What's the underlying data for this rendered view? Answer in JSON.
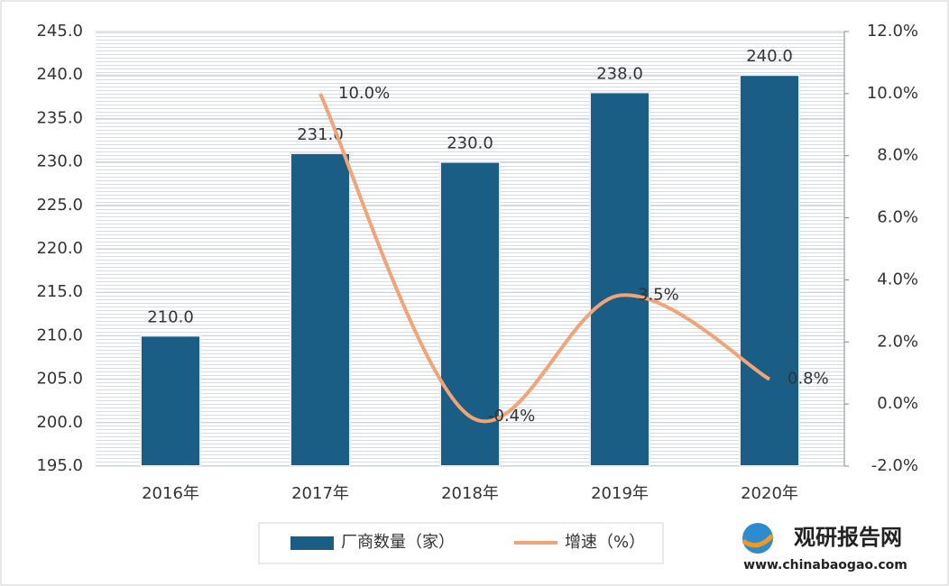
{
  "chart_data": {
    "type": "bar",
    "categories": [
      "2016年",
      "2017年",
      "2018年",
      "2019年",
      "2020年"
    ],
    "series": [
      {
        "name": "厂商数量（家）",
        "type": "bar",
        "color": "#1b5e85",
        "values": [
          210,
          231,
          230,
          238,
          240
        ],
        "value_labels": [
          "210.0",
          "231.0",
          "230.0",
          "238.0",
          "240.0"
        ]
      },
      {
        "name": "增速（%）",
        "type": "line",
        "axis": "y2",
        "color": "#f2a477",
        "values": [
          null,
          10.0,
          -0.4,
          3.5,
          0.8
        ],
        "value_labels": [
          null,
          "10.0%",
          "-0.4%",
          "3.5%",
          "0.8%"
        ]
      }
    ],
    "ylim": [
      195,
      245
    ],
    "yticks": [
      {
        "value": 195,
        "label": "195.0"
      },
      {
        "value": 200,
        "label": "200.0"
      },
      {
        "value": 205,
        "label": "205.0"
      },
      {
        "value": 210,
        "label": "210.0"
      },
      {
        "value": 215,
        "label": "215.0"
      },
      {
        "value": 220,
        "label": "220.0"
      },
      {
        "value": 225,
        "label": "225.0"
      },
      {
        "value": 230,
        "label": "230.0"
      },
      {
        "value": 235,
        "label": "235.0"
      },
      {
        "value": 240,
        "label": "240.0"
      },
      {
        "value": 245,
        "label": "245.0"
      }
    ],
    "y2lim": [
      -2,
      12
    ],
    "y2ticks": [
      {
        "value": -2,
        "label": "-2.0%"
      },
      {
        "value": 0,
        "label": "0.0%"
      },
      {
        "value": 2,
        "label": "2.0%"
      },
      {
        "value": 4,
        "label": "4.0%"
      },
      {
        "value": 6,
        "label": "6.0%"
      },
      {
        "value": 8,
        "label": "8.0%"
      },
      {
        "value": 10,
        "label": "10.0%"
      },
      {
        "value": 12,
        "label": "12.0%"
      }
    ],
    "grid": true,
    "legend": "bottom"
  },
  "watermark": {
    "name": "观研报告网",
    "url": "www.chinabaogao.com"
  }
}
